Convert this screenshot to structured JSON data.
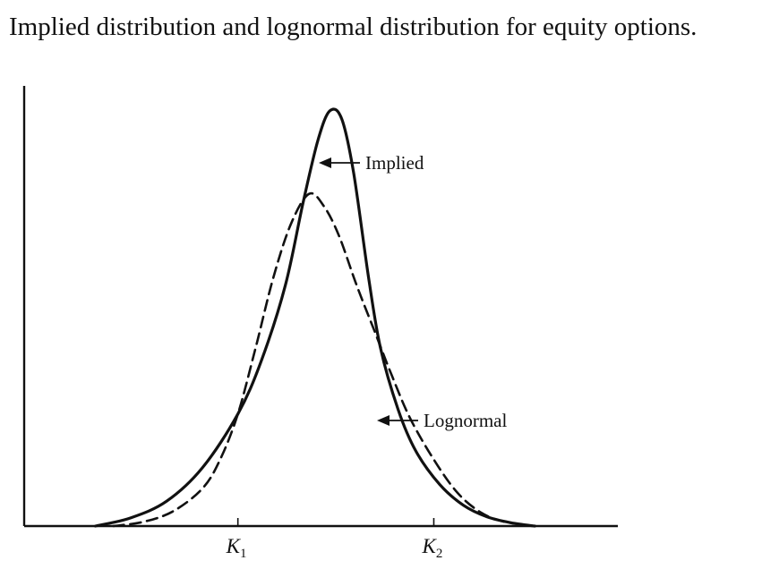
{
  "chart_data": {
    "type": "line",
    "title": "Implied distribution and lognormal distribution for equity options.",
    "xlabel": "",
    "ylabel": "",
    "xlim": [
      0,
      10
    ],
    "ylim": [
      0,
      1.06
    ],
    "grid": false,
    "tick_labels": [
      {
        "x": 3.6,
        "main": "K",
        "sub": "1"
      },
      {
        "x": 6.9,
        "main": "K",
        "sub": "2"
      }
    ],
    "series": [
      {
        "name": "Implied",
        "style": "solid",
        "x": [
          1.2,
          1.8,
          2.4,
          3.0,
          3.6,
          4.0,
          4.4,
          4.7,
          4.95,
          5.15,
          5.35,
          5.55,
          5.8,
          6.0,
          6.3,
          6.6,
          7.0,
          7.4,
          7.8,
          8.2,
          8.6
        ],
        "y": [
          0.0,
          0.02,
          0.06,
          0.14,
          0.27,
          0.4,
          0.58,
          0.78,
          0.93,
          1.0,
          0.98,
          0.85,
          0.6,
          0.43,
          0.28,
          0.18,
          0.1,
          0.05,
          0.022,
          0.008,
          0.0
        ]
      },
      {
        "name": "Lognormal",
        "style": "dashed",
        "x": [
          1.5,
          2.0,
          2.5,
          3.0,
          3.3,
          3.6,
          3.9,
          4.2,
          4.5,
          4.8,
          5.05,
          5.3,
          5.6,
          5.9,
          6.2,
          6.5,
          6.9,
          7.3,
          7.7,
          8.1,
          8.6
        ],
        "y": [
          0.0,
          0.01,
          0.035,
          0.09,
          0.16,
          0.27,
          0.43,
          0.6,
          0.73,
          0.8,
          0.77,
          0.7,
          0.58,
          0.47,
          0.36,
          0.26,
          0.16,
          0.08,
          0.032,
          0.01,
          0.0
        ]
      }
    ],
    "annotations": [
      {
        "text": "Implied",
        "points_to": "Implied"
      },
      {
        "text": "Lognormal",
        "points_to": "Lognormal"
      }
    ],
    "colors": {
      "line": "#111111",
      "background": "#ffffff"
    }
  }
}
